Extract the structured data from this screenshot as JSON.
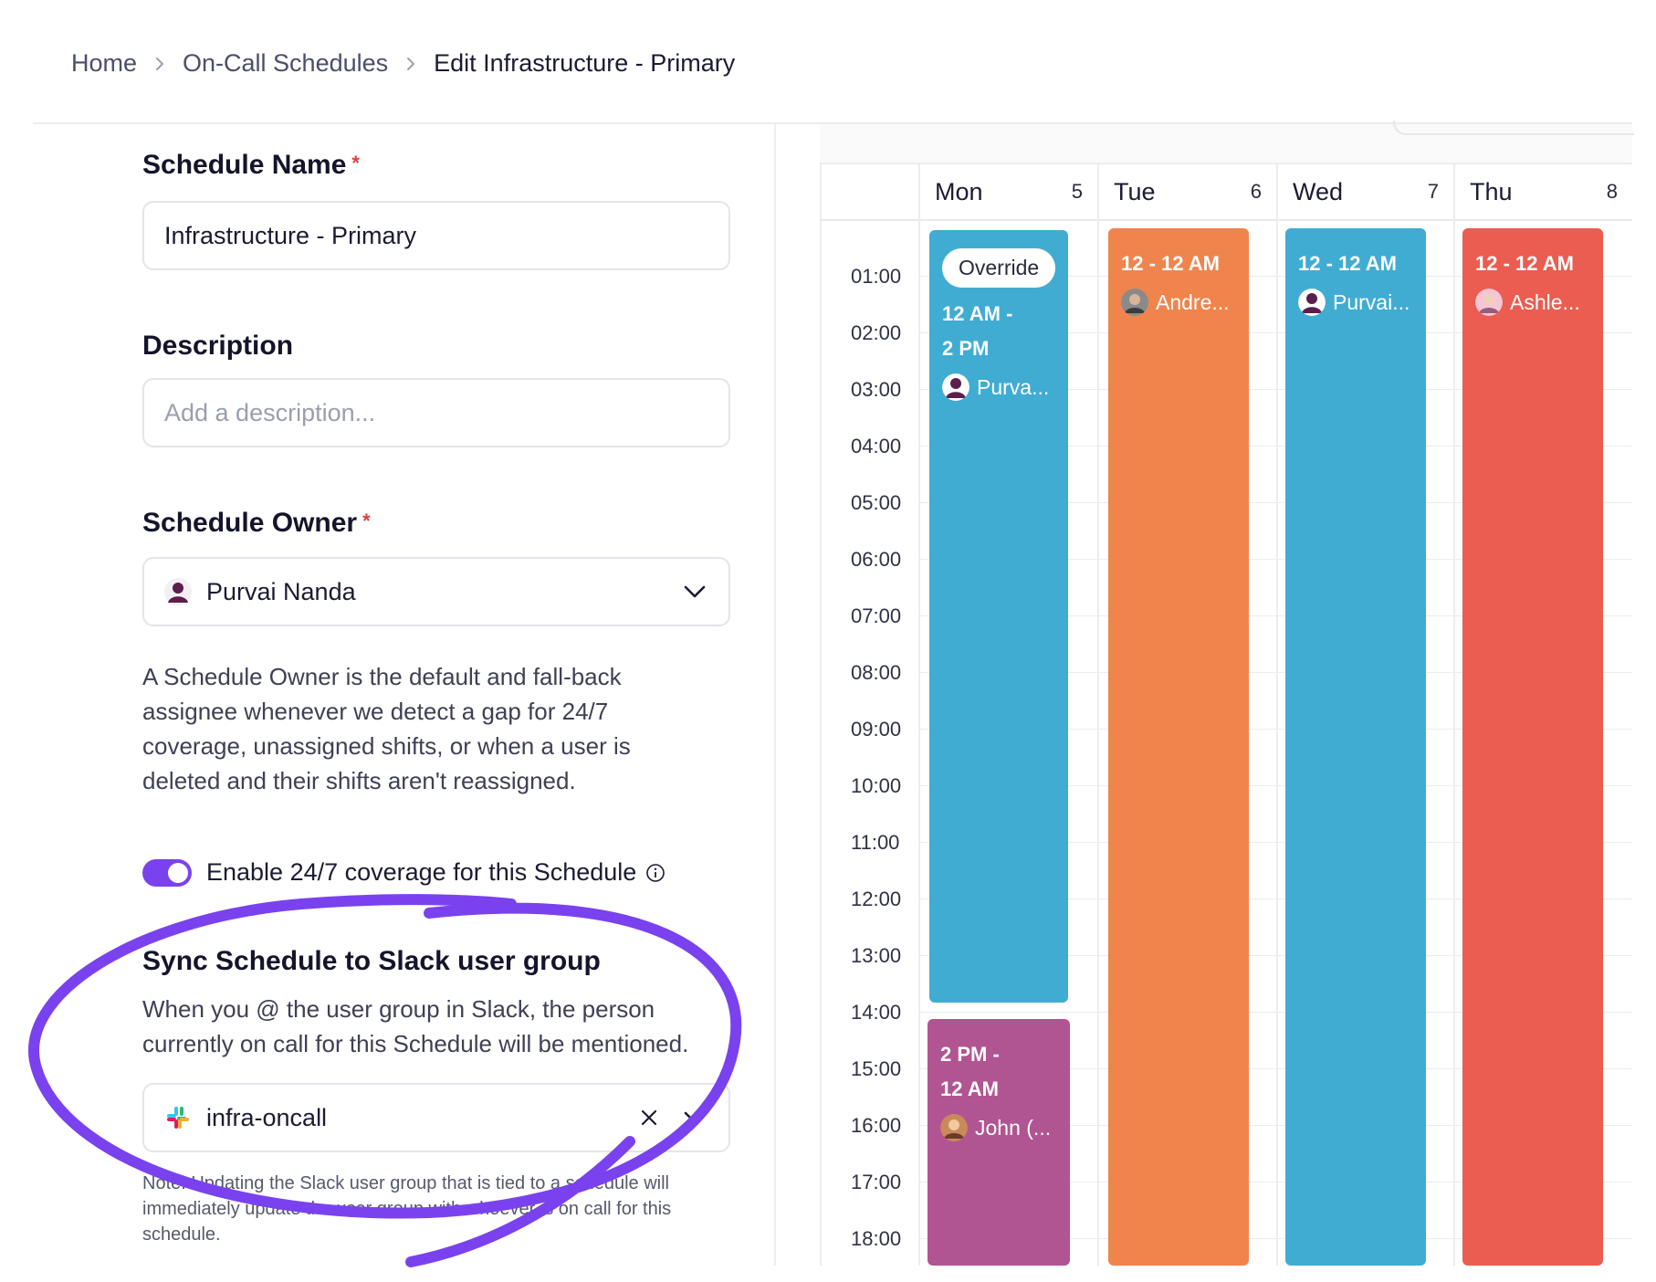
{
  "breadcrumb": {
    "items": [
      "Home",
      "On-Call Schedules"
    ],
    "current": "Edit Infrastructure - Primary"
  },
  "form": {
    "schedule_name": {
      "label": "Schedule Name",
      "value": "Infrastructure - Primary"
    },
    "description": {
      "label": "Description",
      "placeholder": "Add a description..."
    },
    "owner": {
      "label": "Schedule Owner",
      "value": "Purvai Nanda",
      "help": "A Schedule Owner is the default and fall-back assignee whenever we detect a gap for 24/7 coverage, unassigned shifts, or when a user is deleted and their shifts aren't reassigned."
    },
    "coverage_toggle": {
      "label": "Enable 24/7 coverage for this Schedule",
      "enabled": true
    },
    "slack_sync": {
      "title": "Sync Schedule to Slack user group",
      "help": "When you @ the user group in Slack, the person currently on call for this Schedule will be mentioned.",
      "value": "infra-oncall",
      "note": "Note: Updating the Slack user group that is tied to a schedule will immediately update the user group with whoever is on call for this schedule."
    },
    "required_mark": "*"
  },
  "calendar": {
    "days": [
      {
        "name": "Mon",
        "num": "5"
      },
      {
        "name": "Tue",
        "num": "6"
      },
      {
        "name": "Wed",
        "num": "7"
      },
      {
        "name": "Thu",
        "num": "8"
      }
    ],
    "times": [
      "01:00",
      "02:00",
      "03:00",
      "04:00",
      "05:00",
      "06:00",
      "07:00",
      "08:00",
      "09:00",
      "10:00",
      "11:00",
      "12:00",
      "13:00",
      "14:00",
      "15:00",
      "16:00",
      "17:00",
      "18:00"
    ],
    "shifts": {
      "mon_override": {
        "pill": "Override",
        "time_a": "12 AM -",
        "time_b": "2 PM",
        "person": "Purva..."
      },
      "mon_late": {
        "time_a": "2 PM -",
        "time_b": "12 AM",
        "person": "John (..."
      },
      "tue": {
        "time": "12 - 12 AM",
        "person": "Andre..."
      },
      "wed": {
        "time": "12 - 12 AM",
        "person": "Purvai..."
      },
      "thu": {
        "time": "12 - 12 AM",
        "person": "Ashle..."
      }
    },
    "colors": {
      "blue": "#41acd2",
      "orange": "#f0844d",
      "red": "#ea5d50",
      "purple": "#b15592",
      "accent": "#7a42ee"
    }
  }
}
